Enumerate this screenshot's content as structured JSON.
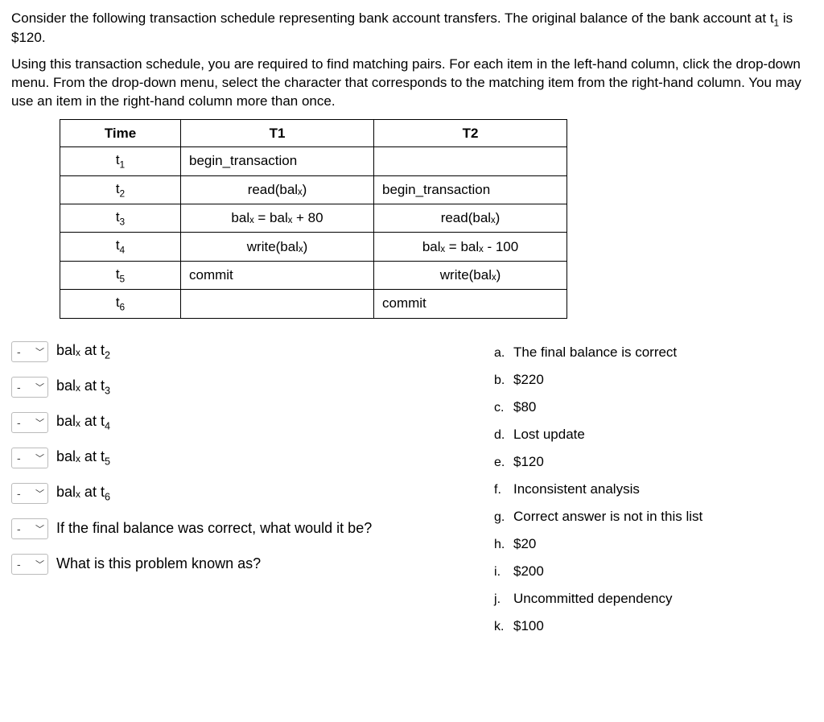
{
  "intro": {
    "p1_a": "Consider the following transaction schedule representing bank account transfers. The original balance of the bank account at t",
    "p1_sub": "1",
    "p1_b": " is $120.",
    "p2": "Using this transaction schedule, you are required to find matching pairs. For each item in the left-hand column, click the drop-down menu. From the drop-down menu, select the character that corresponds to the matching item from the right-hand column. You may use an item in the right-hand column more than once."
  },
  "table": {
    "headers": {
      "time": "Time",
      "t1": "T1",
      "t2": "T2"
    },
    "rows": [
      {
        "time_base": "t",
        "time_sub": "1",
        "t1": "begin_transaction",
        "t1_align": "pl",
        "t2": "",
        "t2_align": "pl"
      },
      {
        "time_base": "t",
        "time_sub": "2",
        "t1": "read(balₓ)",
        "t1_align": "c",
        "t2": "begin_transaction",
        "t2_align": "pl"
      },
      {
        "time_base": "t",
        "time_sub": "3",
        "t1": "balₓ = balₓ + 80",
        "t1_align": "c",
        "t2": "read(balₓ)",
        "t2_align": "c"
      },
      {
        "time_base": "t",
        "time_sub": "4",
        "t1": "write(balₓ)",
        "t1_align": "c",
        "t2": "balₓ = balₓ - 100",
        "t2_align": "c"
      },
      {
        "time_base": "t",
        "time_sub": "5",
        "t1": "commit",
        "t1_align": "pl",
        "t2": "write(balₓ)",
        "t2_align": "c"
      },
      {
        "time_base": "t",
        "time_sub": "6",
        "t1": "",
        "t1_align": "pl",
        "t2": "commit",
        "t2_align": "pl"
      }
    ]
  },
  "matching": {
    "dropdown_placeholder": "-",
    "items": [
      {
        "pre": "bal",
        "sub": "ₓ",
        "mid": " at t",
        "sub2": "2",
        "post": ""
      },
      {
        "pre": "bal",
        "sub": "ₓ",
        "mid": " at t",
        "sub2": "3",
        "post": ""
      },
      {
        "pre": "bal",
        "sub": "ₓ",
        "mid": " at t",
        "sub2": "4",
        "post": ""
      },
      {
        "pre": "bal",
        "sub": "ₓ",
        "mid": " at t",
        "sub2": "5",
        "post": ""
      },
      {
        "pre": "bal",
        "sub": "ₓ",
        "mid": " at t",
        "sub2": "6",
        "post": ""
      },
      {
        "pre": "If the final balance was correct, what would it be?",
        "sub": "",
        "mid": "",
        "sub2": "",
        "post": ""
      },
      {
        "pre": "What is this problem known as?",
        "sub": "",
        "mid": "",
        "sub2": "",
        "post": ""
      }
    ],
    "answers": [
      {
        "letter": "a",
        "text": "The final balance is correct"
      },
      {
        "letter": "b",
        "text": "$220"
      },
      {
        "letter": "c",
        "text": "$80"
      },
      {
        "letter": "d",
        "text": "Lost update"
      },
      {
        "letter": "e",
        "text": "$120"
      },
      {
        "letter": "f",
        "text": "Inconsistent analysis"
      },
      {
        "letter": "g",
        "text": "Correct answer is not in this list"
      },
      {
        "letter": "h",
        "text": "$20"
      },
      {
        "letter": "i",
        "text": "$200"
      },
      {
        "letter": "j",
        "text": "Uncommitted dependency"
      },
      {
        "letter": "k",
        "text": "$100"
      }
    ]
  }
}
